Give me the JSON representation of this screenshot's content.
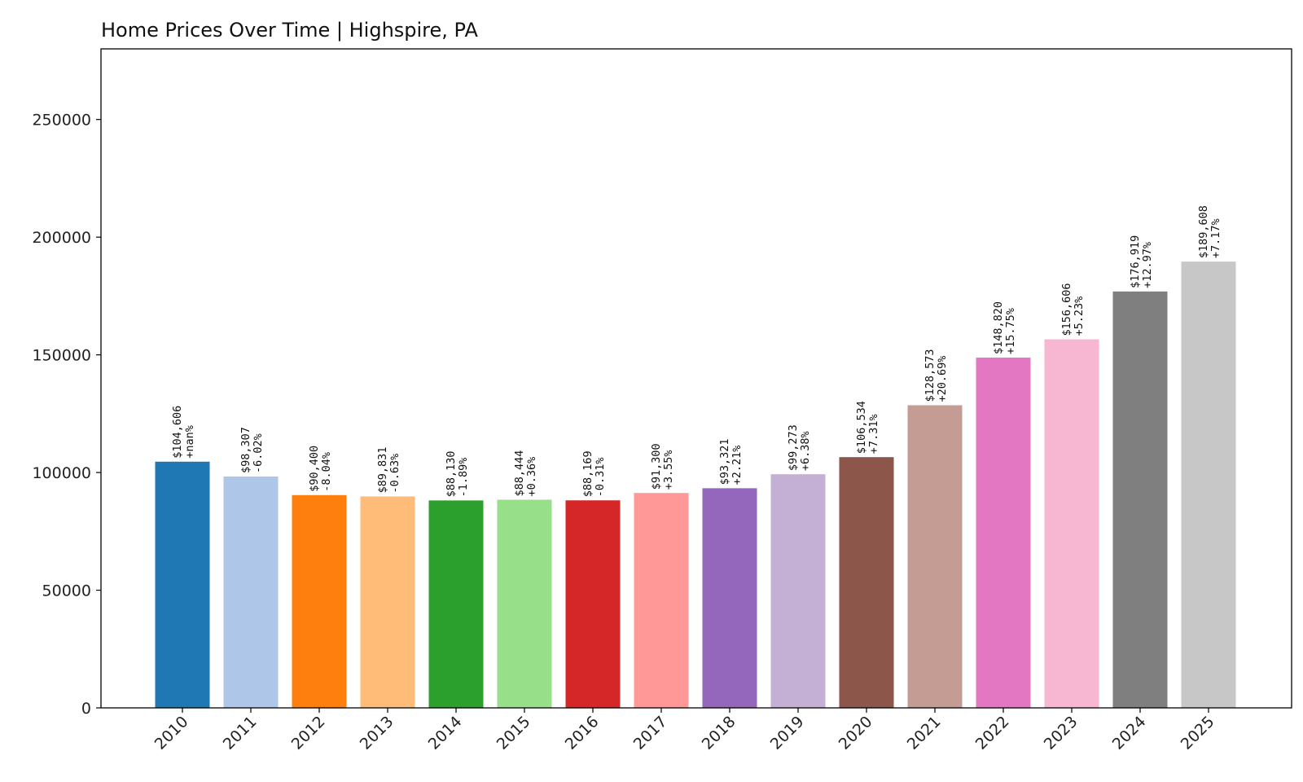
{
  "chart_data": {
    "type": "bar",
    "title": "Home Prices Over Time | Highspire, PA",
    "xlabel": "",
    "ylabel": "",
    "ylim": [
      0,
      280000
    ],
    "yticks": [
      "0",
      "50000",
      "100000",
      "150000",
      "200000",
      "250000"
    ],
    "grid": false,
    "categories": [
      "2010",
      "2011",
      "2012",
      "2013",
      "2014",
      "2015",
      "2016",
      "2017",
      "2018",
      "2019",
      "2020",
      "2021",
      "2022",
      "2023",
      "2024",
      "2025"
    ],
    "values": [
      104606,
      98307,
      90400,
      89831,
      88130,
      88444,
      88169,
      91300,
      93321,
      99273,
      106534,
      128573,
      148820,
      156606,
      176919,
      189608
    ],
    "value_labels": [
      "$104,606",
      "$98,307",
      "$90,400",
      "$89,831",
      "$88,130",
      "$88,444",
      "$88,169",
      "$91,300",
      "$93,321",
      "$99,273",
      "$106,534",
      "$128,573",
      "$148,820",
      "$156,606",
      "$176,919",
      "$189,608"
    ],
    "change_labels": [
      "+nan%",
      "-6.02%",
      "-8.04%",
      "-0.63%",
      "-1.89%",
      "+0.36%",
      "-0.31%",
      "+3.55%",
      "+2.21%",
      "+6.38%",
      "+7.31%",
      "+20.69%",
      "+15.75%",
      "+5.23%",
      "+12.97%",
      "+7.17%"
    ],
    "colors": [
      "#1f77b4",
      "#aec7e8",
      "#ff7f0e",
      "#ffbb78",
      "#2ca02c",
      "#98df8a",
      "#d62728",
      "#ff9896",
      "#9467bd",
      "#c5b0d5",
      "#8c564b",
      "#c49c94",
      "#e377c2",
      "#f7b6d2",
      "#7f7f7f",
      "#c7c7c7"
    ]
  }
}
